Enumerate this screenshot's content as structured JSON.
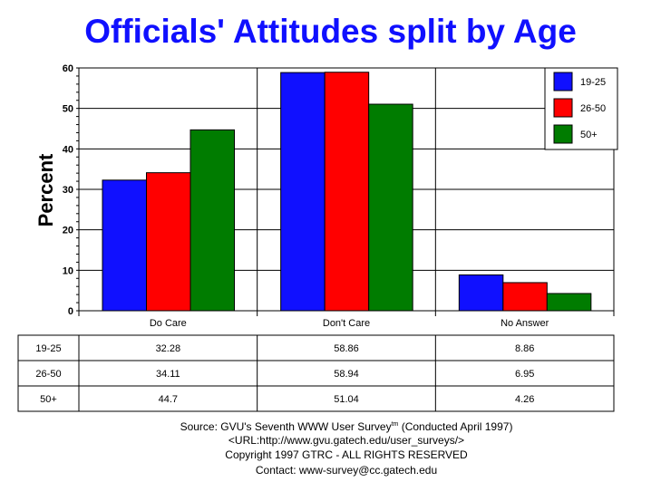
{
  "chart_data": {
    "type": "bar",
    "title": "Officials' Attitudes split by Age",
    "ylabel": "Percent",
    "xlabel": "",
    "ylim": [
      0,
      60
    ],
    "yticks": [
      0,
      10,
      20,
      30,
      40,
      50,
      60
    ],
    "grid": true,
    "legend_position": "top-right",
    "categories": [
      "Do Care",
      "Don't Care",
      "No Answer"
    ],
    "series": [
      {
        "name": "19-25",
        "color": "#1010ff",
        "values": [
          32.28,
          58.86,
          8.86
        ],
        "labels": [
          "32.28",
          "58.86",
          "8.86"
        ]
      },
      {
        "name": "26-50",
        "color": "#ff0000",
        "values": [
          34.11,
          58.94,
          6.95
        ],
        "labels": [
          "34.11",
          "58.94",
          "6.95"
        ]
      },
      {
        "name": "50+",
        "color": "#007c00",
        "values": [
          44.7,
          51.04,
          4.26
        ],
        "labels": [
          "44.7",
          "51.04",
          "4.26"
        ]
      }
    ]
  },
  "footer": {
    "source": "Source: GVU's Seventh WWW User Survey",
    "tm": "tm",
    "conducted": " (Conducted April 1997)",
    "url": "<URL:http://www.gvu.gatech.edu/user_surveys/>",
    "copyright": "Copyright 1997 GTRC - ALL RIGHTS RESERVED",
    "contact": "Contact: www-survey@cc.gatech.edu"
  }
}
